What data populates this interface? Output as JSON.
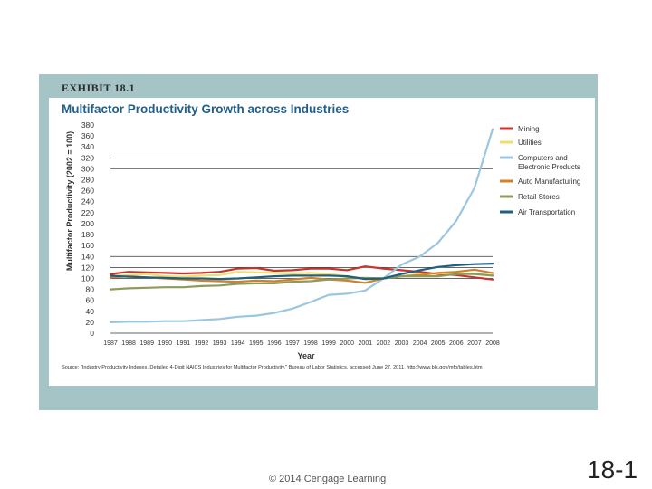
{
  "slide": {
    "exhibit_label": "EXHIBIT 18.1",
    "copyright": "© 2014 Cengage Learning",
    "slide_number": "18-1",
    "source_text": "Source: \"Industry Productivity Indexes, Detailed 4-Digit NAICS Industries for Multifactor Productivity,\" Bureau of Labor Statistics, accessed June 27, 2011, http://www.bls.gov/mfp/tables.htm"
  },
  "colors": {
    "frame": "#a4c4c6",
    "title": "#1f5f8a"
  },
  "chart_data": {
    "type": "line",
    "title": "Multifactor Productivity Growth across Industries",
    "xlabel": "Year",
    "ylabel": "Multifactor Productivity (2002 = 100)",
    "ylim": [
      0,
      380
    ],
    "yticks": [
      0,
      20,
      40,
      60,
      80,
      100,
      120,
      140,
      160,
      180,
      200,
      220,
      240,
      260,
      280,
      300,
      320,
      340,
      360,
      380
    ],
    "gridlines": [
      100,
      120,
      140,
      300,
      320
    ],
    "legend_position": "right",
    "categories": [
      "1987",
      "1988",
      "1989",
      "1990",
      "1991",
      "1992",
      "1993",
      "1994",
      "1995",
      "1996",
      "1997",
      "1998",
      "1999",
      "2000",
      "2001",
      "2002",
      "2003",
      "2004",
      "2005",
      "2006",
      "2007",
      "2008"
    ],
    "series": [
      {
        "name": "Mining",
        "color": "#c8342c",
        "values": [
          108,
          112,
          111,
          110,
          109,
          110,
          112,
          118,
          119,
          114,
          115,
          118,
          118,
          115,
          122,
          118,
          115,
          112,
          108,
          106,
          102,
          98
        ]
      },
      {
        "name": "Utilities",
        "color": "#f2dd72",
        "values": [
          104,
          106,
          108,
          104,
          103,
          105,
          106,
          112,
          111,
          110,
          109,
          110,
          108,
          104,
          100,
          100,
          104,
          108,
          109,
          110,
          108,
          106
        ]
      },
      {
        "name": "Computers and Electronic Products",
        "color": "#9cc6e0",
        "values": [
          20,
          21,
          21,
          22,
          22,
          24,
          26,
          30,
          32,
          37,
          45,
          57,
          70,
          72,
          78,
          100,
          125,
          140,
          165,
          205,
          265,
          372
        ]
      },
      {
        "name": "Auto Manufacturing",
        "color": "#d2802a",
        "values": [
          102,
          104,
          102,
          100,
          98,
          96,
          95,
          94,
          96,
          95,
          98,
          101,
          98,
          96,
          92,
          100,
          104,
          106,
          110,
          112,
          116,
          110
        ]
      },
      {
        "name": "Retail Stores",
        "color": "#8e9a5c",
        "values": [
          80,
          82,
          83,
          84,
          84,
          86,
          87,
          90,
          91,
          91,
          94,
          95,
          98,
          100,
          101,
          100,
          104,
          104,
          104,
          108,
          108,
          105
        ]
      },
      {
        "name": "Air Transportation",
        "color": "#1f5f80",
        "values": [
          105,
          103,
          102,
          101,
          100,
          100,
          99,
          100,
          102,
          104,
          105,
          105,
          105,
          104,
          99,
          100,
          108,
          115,
          121,
          124,
          126,
          127
        ]
      }
    ]
  }
}
